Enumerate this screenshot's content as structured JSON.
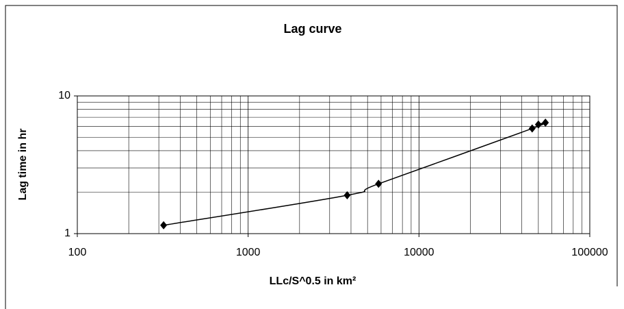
{
  "chart_data": {
    "type": "line",
    "title": "Lag curve",
    "x_label": "LLc/S^0.5 in km²",
    "y_label": "Lag time in hr",
    "x_scale": "log",
    "y_scale": "log",
    "series": [
      {
        "color": "#000000",
        "x": [
          320,
          3800,
          5800,
          46000,
          50000,
          55000
        ],
        "values": [
          1.15,
          1.9,
          2.3,
          5.8,
          6.2,
          6.4
        ]
      }
    ],
    "xlim": [
      100,
      100000
    ],
    "xticks": [
      100,
      1000,
      10000,
      100000
    ],
    "ylim": [
      1,
      10
    ],
    "yticks": [
      1,
      10
    ],
    "grid": true,
    "minor_grid": true
  }
}
